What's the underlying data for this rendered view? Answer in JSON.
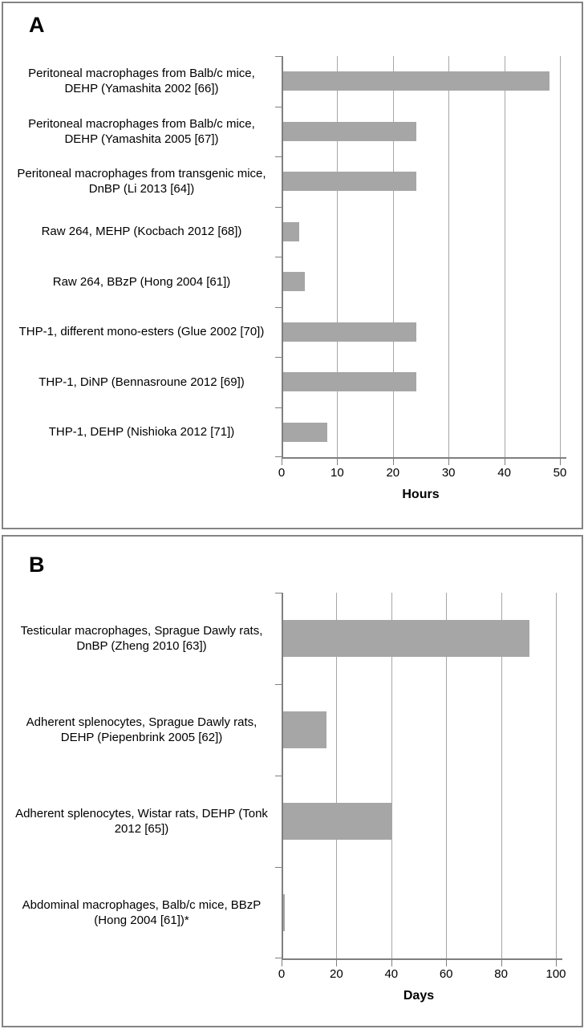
{
  "figure": {
    "panel_a_letter": "A",
    "panel_b_letter": "B",
    "colors": {
      "bar": "#a6a6a6",
      "gridline": "#a6a6a6",
      "axis": "#7f7f7f",
      "panel_border": "#848484",
      "text": "#000000"
    }
  },
  "chart_data": [
    {
      "panel": "A",
      "type": "bar",
      "orientation": "horizontal",
      "categories": [
        "Peritoneal macrophages from Balb/c mice, DEHP (Yamashita 2002 [66])",
        "Peritoneal macrophages from Balb/c mice, DEHP (Yamashita 2005 [67])",
        "Peritoneal macrophages from transgenic mice, DnBP (Li 2013 [64])",
        "Raw 264, MEHP (Kocbach 2012 [68])",
        "Raw 264, BBzP (Hong 2004 [61])",
        "THP-1, different mono-esters (Glue 2002 [70])",
        "THP-1, DiNP (Bennasroune 2012 [69])",
        "THP-1, DEHP (Nishioka 2012 [71])"
      ],
      "values": [
        48,
        24,
        24,
        3,
        4,
        24,
        24,
        8
      ],
      "xlabel": "Hours",
      "xlim": [
        0,
        50
      ],
      "xticks": [
        0,
        10,
        20,
        30,
        40,
        50
      ],
      "grid": true,
      "legend": false,
      "bar_color": "#a6a6a6"
    },
    {
      "panel": "B",
      "type": "bar",
      "orientation": "horizontal",
      "categories": [
        "Testicular macrophages, Sprague Dawly rats, DnBP (Zheng 2010 [63])",
        "Adherent splenocytes, Sprague Dawly rats, DEHP (Piepenbrink 2005 [62])",
        "Adherent splenocytes, Wistar rats, DEHP (Tonk 2012 [65])",
        "Abdominal macrophages, Balb/c mice, BBzP (Hong 2004 [61])*"
      ],
      "values": [
        90,
        16,
        40,
        1
      ],
      "xlabel": "Days",
      "xlim": [
        0,
        100
      ],
      "xticks": [
        0,
        20,
        40,
        60,
        80,
        100
      ],
      "grid": true,
      "legend": false,
      "bar_color": "#a6a6a6"
    }
  ]
}
